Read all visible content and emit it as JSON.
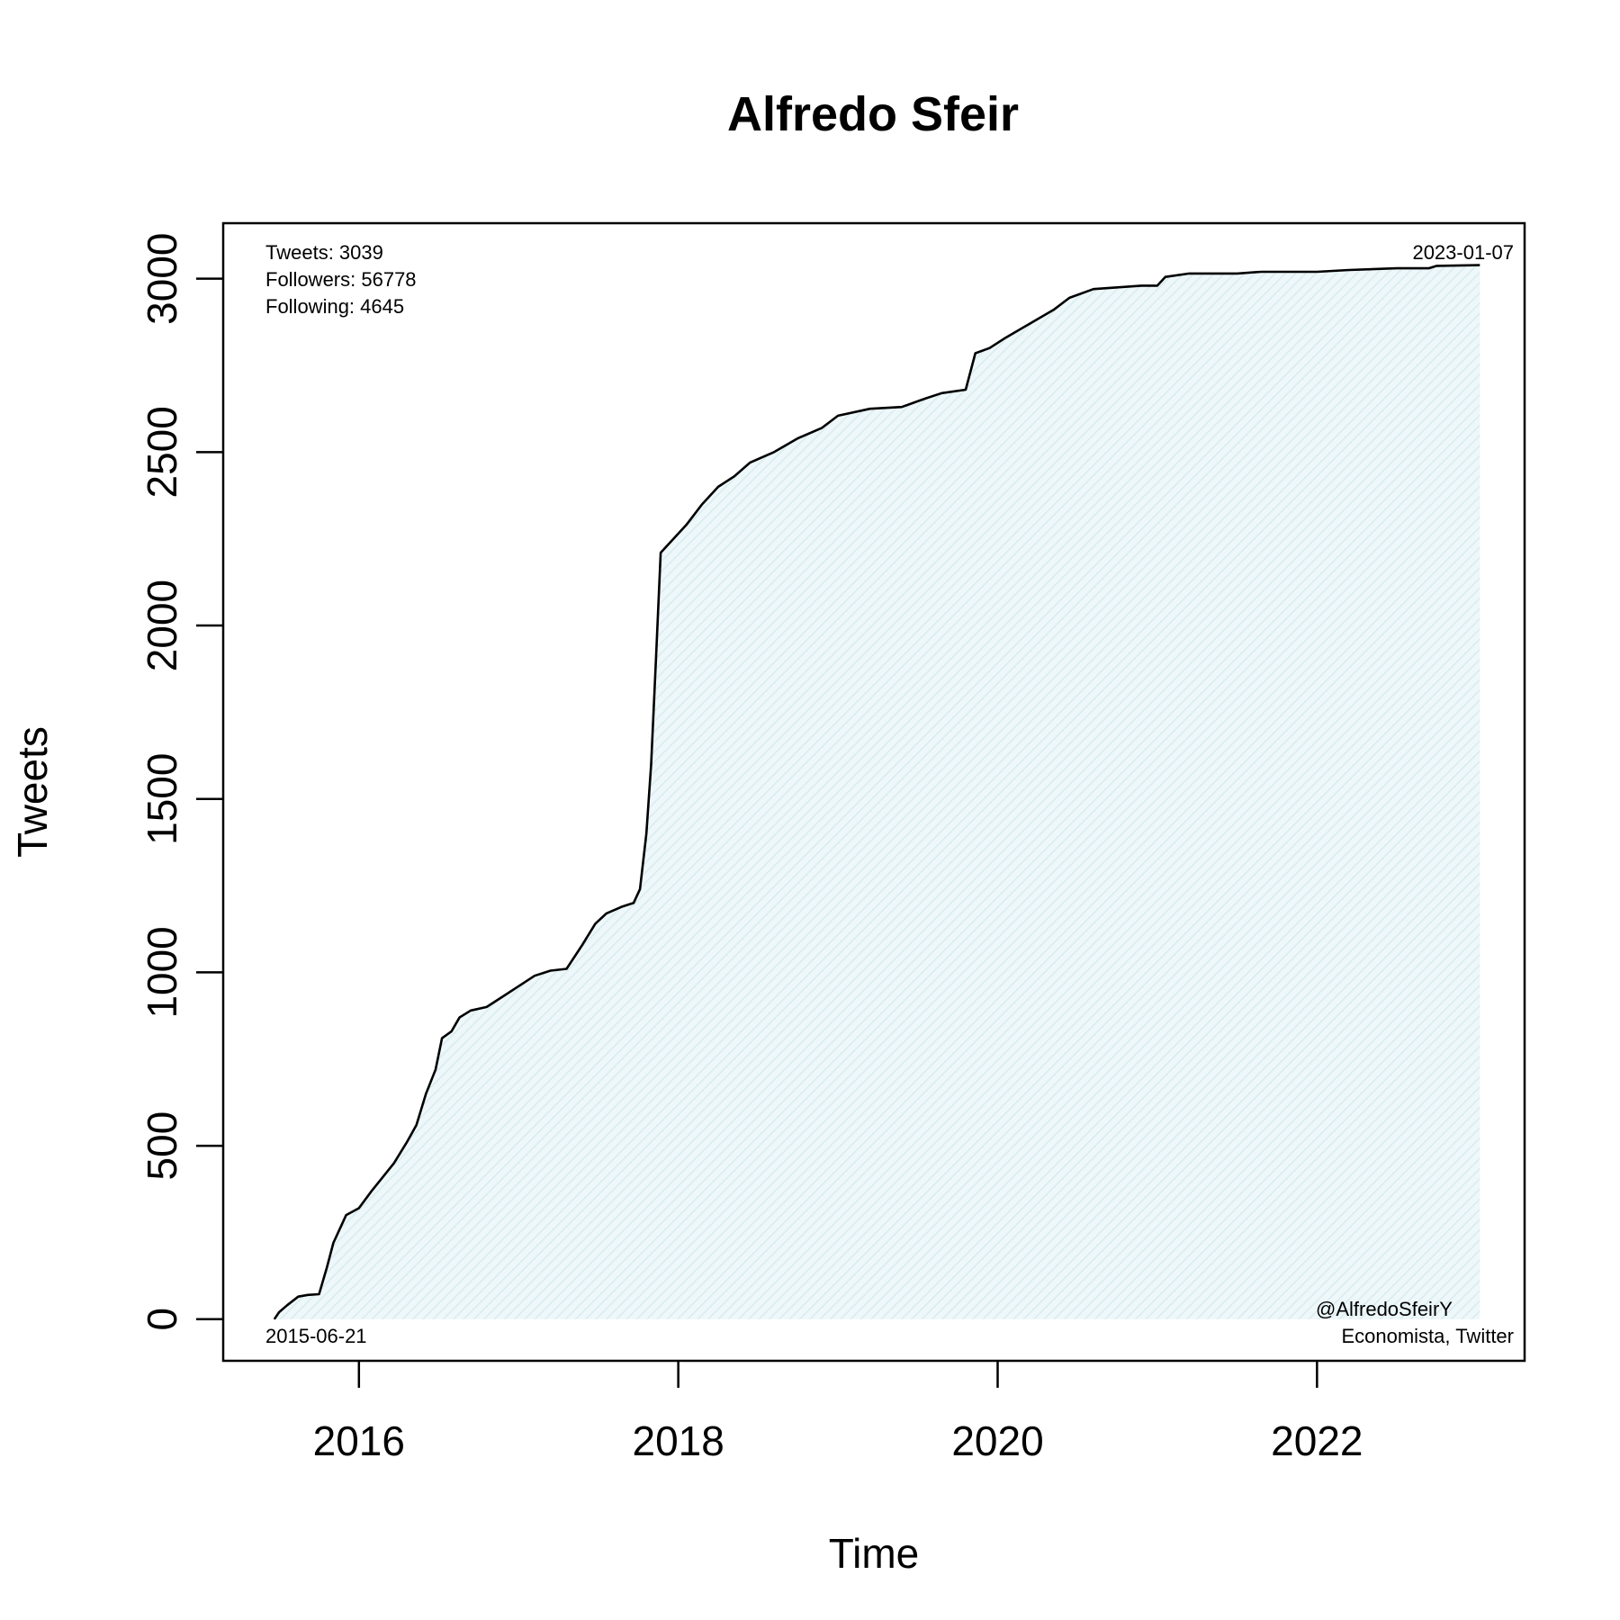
{
  "chart_data": {
    "type": "area",
    "title": "Alfredo Sfeir",
    "xlabel": "Time",
    "ylabel": "Tweets",
    "xlim": [
      2015.15,
      2023.3
    ],
    "ylim": [
      -120,
      3160
    ],
    "x_ticks": [
      2016,
      2018,
      2020,
      2022
    ],
    "x_tick_labels": [
      "2016",
      "2018",
      "2020",
      "2022"
    ],
    "y_ticks": [
      0,
      500,
      1000,
      1500,
      2000,
      2500,
      3000
    ],
    "y_tick_labels": [
      "0",
      "500",
      "1000",
      "1500",
      "2000",
      "2500",
      "3000"
    ],
    "grid": false,
    "fill_color": "#d8ecf0",
    "line_color": "#000000",
    "series": [
      {
        "points": [
          [
            2015.47,
            0
          ],
          [
            2015.5,
            20
          ],
          [
            2015.55,
            40
          ],
          [
            2015.62,
            65
          ],
          [
            2015.68,
            70
          ],
          [
            2015.75,
            72
          ],
          [
            2015.8,
            150
          ],
          [
            2015.84,
            220
          ],
          [
            2015.88,
            260
          ],
          [
            2015.92,
            300
          ],
          [
            2016.0,
            320
          ],
          [
            2016.08,
            370
          ],
          [
            2016.15,
            410
          ],
          [
            2016.22,
            450
          ],
          [
            2016.3,
            510
          ],
          [
            2016.36,
            560
          ],
          [
            2016.42,
            650
          ],
          [
            2016.48,
            720
          ],
          [
            2016.52,
            810
          ],
          [
            2016.58,
            830
          ],
          [
            2016.63,
            870
          ],
          [
            2016.7,
            890
          ],
          [
            2016.8,
            900
          ],
          [
            2016.9,
            930
          ],
          [
            2017.0,
            960
          ],
          [
            2017.1,
            990
          ],
          [
            2017.2,
            1005
          ],
          [
            2017.3,
            1010
          ],
          [
            2017.4,
            1080
          ],
          [
            2017.48,
            1140
          ],
          [
            2017.55,
            1170
          ],
          [
            2017.65,
            1190
          ],
          [
            2017.72,
            1200
          ],
          [
            2017.76,
            1240
          ],
          [
            2017.8,
            1400
          ],
          [
            2017.83,
            1600
          ],
          [
            2017.86,
            1900
          ],
          [
            2017.89,
            2210
          ],
          [
            2017.95,
            2240
          ],
          [
            2018.05,
            2290
          ],
          [
            2018.15,
            2350
          ],
          [
            2018.25,
            2400
          ],
          [
            2018.35,
            2430
          ],
          [
            2018.45,
            2470
          ],
          [
            2018.6,
            2500
          ],
          [
            2018.75,
            2540
          ],
          [
            2018.9,
            2570
          ],
          [
            2019.0,
            2605
          ],
          [
            2019.2,
            2625
          ],
          [
            2019.4,
            2630
          ],
          [
            2019.55,
            2655
          ],
          [
            2019.65,
            2670
          ],
          [
            2019.8,
            2680
          ],
          [
            2019.86,
            2785
          ],
          [
            2019.95,
            2800
          ],
          [
            2020.05,
            2830
          ],
          [
            2020.2,
            2870
          ],
          [
            2020.35,
            2910
          ],
          [
            2020.45,
            2945
          ],
          [
            2020.6,
            2970
          ],
          [
            2020.75,
            2975
          ],
          [
            2020.9,
            2980
          ],
          [
            2021.0,
            2980
          ],
          [
            2021.05,
            3005
          ],
          [
            2021.2,
            3015
          ],
          [
            2021.5,
            3015
          ],
          [
            2021.65,
            3020
          ],
          [
            2022.0,
            3020
          ],
          [
            2022.2,
            3025
          ],
          [
            2022.5,
            3030
          ],
          [
            2022.7,
            3030
          ],
          [
            2022.75,
            3037
          ],
          [
            2023.02,
            3039
          ]
        ]
      }
    ]
  },
  "annotations": {
    "tweets": "Tweets: 3039",
    "followers": "Followers: 56778",
    "following": "Following: 4645",
    "end_date": "2023-01-07",
    "start_date": "2015-06-21",
    "handle": "@AlfredoSfeirY",
    "bio": "Economista, Twitter"
  }
}
